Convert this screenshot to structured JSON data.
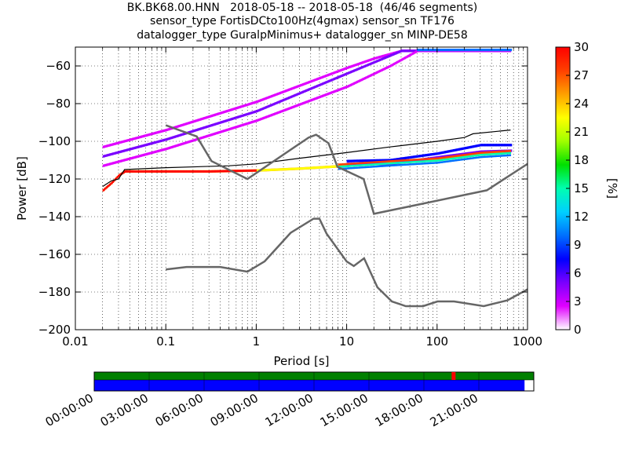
{
  "chart_data": {
    "type": "heatmap",
    "title_lines": [
      "BK.BK68.00.HNN   2018-05-18 -- 2018-05-18  (46/46 segments)",
      "sensor_type FortisDCto100Hz(4gmax) sensor_sn TF176",
      "datalogger_type GuralpMinimus+ datalogger_sn MINP-DE58"
    ],
    "xlabel": "Period [s]",
    "ylabel": "Power [dB]",
    "x_scale": "log",
    "xlim": [
      0.01,
      1000
    ],
    "ylim": [
      -200,
      -50
    ],
    "x_ticks": [
      0.01,
      0.1,
      1,
      10,
      100,
      1000
    ],
    "x_tick_labels": [
      "0.01",
      "0.1",
      "1",
      "10",
      "100",
      "1000"
    ],
    "y_ticks": [
      -200,
      -180,
      -160,
      -140,
      -120,
      -100,
      -80,
      -60
    ],
    "y_tick_labels": [
      "−200",
      "−180",
      "−160",
      "−140",
      "−120",
      "−100",
      "−80",
      "−60"
    ],
    "grid": true,
    "colorbar": {
      "label": "[%]",
      "range": [
        0,
        30
      ],
      "ticks": [
        0,
        3,
        6,
        9,
        12,
        15,
        18,
        21,
        24,
        27,
        30
      ],
      "tick_labels": [
        "0",
        "3",
        "6",
        "9",
        "12",
        "15",
        "18",
        "21",
        "24",
        "27",
        "30"
      ],
      "colors": [
        "#ffffff",
        "#e000ff",
        "#7a00ff",
        "#0000ff",
        "#0070ff",
        "#00d0ff",
        "#00ffb0",
        "#00e000",
        "#a0ff00",
        "#ffff00",
        "#ffa000",
        "#ff4000",
        "#ff0000"
      ]
    },
    "psd_bands": [
      {
        "name": "main",
        "value": 24,
        "points": [
          [
            0.02,
            -126
          ],
          [
            0.025,
            -122
          ],
          [
            0.03,
            -118
          ],
          [
            0.035,
            -116
          ],
          [
            0.05,
            -116
          ],
          [
            0.1,
            -116
          ],
          [
            0.3,
            -116
          ],
          [
            1,
            -115.5
          ],
          [
            3,
            -114.5
          ],
          [
            10,
            -113
          ],
          [
            30,
            -111.5
          ],
          [
            100,
            -110
          ],
          [
            300,
            -107
          ],
          [
            650,
            -106
          ]
        ]
      },
      {
        "name": "band-lower",
        "value": 8,
        "points": [
          [
            10,
            -110.5
          ],
          [
            30,
            -110
          ],
          [
            100,
            -106.5
          ],
          [
            300,
            -102
          ],
          [
            650,
            -102
          ]
        ]
      },
      {
        "name": "band-upper",
        "value": 4,
        "points": [
          [
            10,
            -112
          ],
          [
            30,
            -112
          ],
          [
            100,
            -108.5
          ],
          [
            300,
            -105.5
          ],
          [
            650,
            -105
          ]
        ]
      },
      {
        "name": "high-1",
        "value": 3,
        "points": [
          [
            0.02,
            -103
          ],
          [
            0.1,
            -94
          ],
          [
            1,
            -79
          ],
          [
            10,
            -61
          ],
          [
            20,
            -56
          ],
          [
            40,
            -52
          ],
          [
            650,
            -52
          ]
        ]
      },
      {
        "name": "high-2",
        "value": 6,
        "points": [
          [
            0.02,
            -108
          ],
          [
            0.1,
            -99
          ],
          [
            1,
            -84
          ],
          [
            10,
            -64
          ],
          [
            40,
            -52
          ],
          [
            650,
            -52
          ]
        ]
      },
      {
        "name": "high-3",
        "value": 2,
        "points": [
          [
            0.02,
            -113
          ],
          [
            0.1,
            -104
          ],
          [
            1,
            -89
          ],
          [
            10,
            -71
          ],
          [
            30,
            -60
          ],
          [
            60,
            -52
          ],
          [
            650,
            -52
          ]
        ]
      },
      {
        "name": "high-4",
        "value": 11,
        "points": [
          [
            60,
            -51.5
          ],
          [
            650,
            -51.5
          ]
        ]
      }
    ],
    "mode_line": [
      [
        0.02,
        -124
      ],
      [
        0.025,
        -121
      ],
      [
        0.03,
        -120
      ],
      [
        0.035,
        -115
      ],
      [
        0.1,
        -114
      ],
      [
        0.5,
        -113
      ],
      [
        1,
        -112
      ],
      [
        3,
        -109
      ],
      [
        10,
        -106
      ],
      [
        30,
        -103
      ],
      [
        100,
        -100
      ],
      [
        200,
        -98
      ],
      [
        250,
        -96
      ],
      [
        650,
        -94
      ]
    ],
    "nlnm": [
      [
        0.1,
        -168
      ],
      [
        0.17,
        -166.7
      ],
      [
        0.4,
        -166.7
      ],
      [
        0.8,
        -169.2
      ],
      [
        1.24,
        -163.7
      ],
      [
        2.4,
        -148.6
      ],
      [
        4.3,
        -141.1
      ],
      [
        5,
        -141.1
      ],
      [
        6,
        -149
      ],
      [
        10,
        -163.8
      ],
      [
        12,
        -166.2
      ],
      [
        15.6,
        -162.1
      ],
      [
        21.9,
        -177.5
      ],
      [
        31.6,
        -185
      ],
      [
        45,
        -187.5
      ],
      [
        70,
        -187.5
      ],
      [
        101,
        -185
      ],
      [
        154,
        -185
      ],
      [
        328,
        -187.5
      ],
      [
        600,
        -184.4
      ],
      [
        1000,
        -178.6
      ]
    ],
    "nhnm": [
      [
        0.1,
        -91.5
      ],
      [
        0.22,
        -97.4
      ],
      [
        0.32,
        -110.5
      ],
      [
        0.8,
        -120
      ],
      [
        3.8,
        -98
      ],
      [
        4.6,
        -96.5
      ],
      [
        6.3,
        -101
      ],
      [
        7.9,
        -113.5
      ],
      [
        15.4,
        -120
      ],
      [
        20,
        -138.5
      ],
      [
        354.8,
        -126
      ],
      [
        1000,
        -112
      ]
    ]
  },
  "availability": {
    "time_labels": [
      "00:00:00",
      "03:00:00",
      "06:00:00",
      "09:00:00",
      "12:00:00",
      "15:00:00",
      "18:00:00",
      "21:00:00"
    ],
    "hours_total": 24,
    "data_fraction": 0.979,
    "gap_marker_hour": 19.6,
    "colors": {
      "upper": "#008000",
      "data": "#0000ff",
      "gap": "#ff0000"
    }
  }
}
